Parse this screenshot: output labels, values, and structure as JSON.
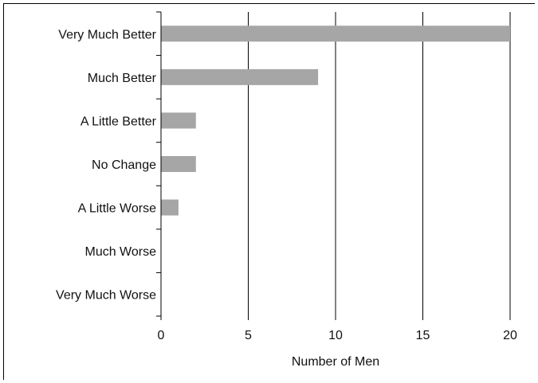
{
  "chart_data": {
    "type": "bar",
    "orientation": "horizontal",
    "categories": [
      "Very Much Better",
      "Much Better",
      "A Little Better",
      "No Change",
      "A Little Worse",
      "Much Worse",
      "Very Much Worse"
    ],
    "values": [
      20,
      9,
      2,
      2,
      1,
      0,
      0
    ],
    "xlabel": "Number of Men",
    "ylabel": "",
    "xlim": [
      0,
      20
    ],
    "xticks": [
      0,
      5,
      10,
      15,
      20
    ],
    "grid": "vertical",
    "bar_color": "#a6a6a6"
  }
}
